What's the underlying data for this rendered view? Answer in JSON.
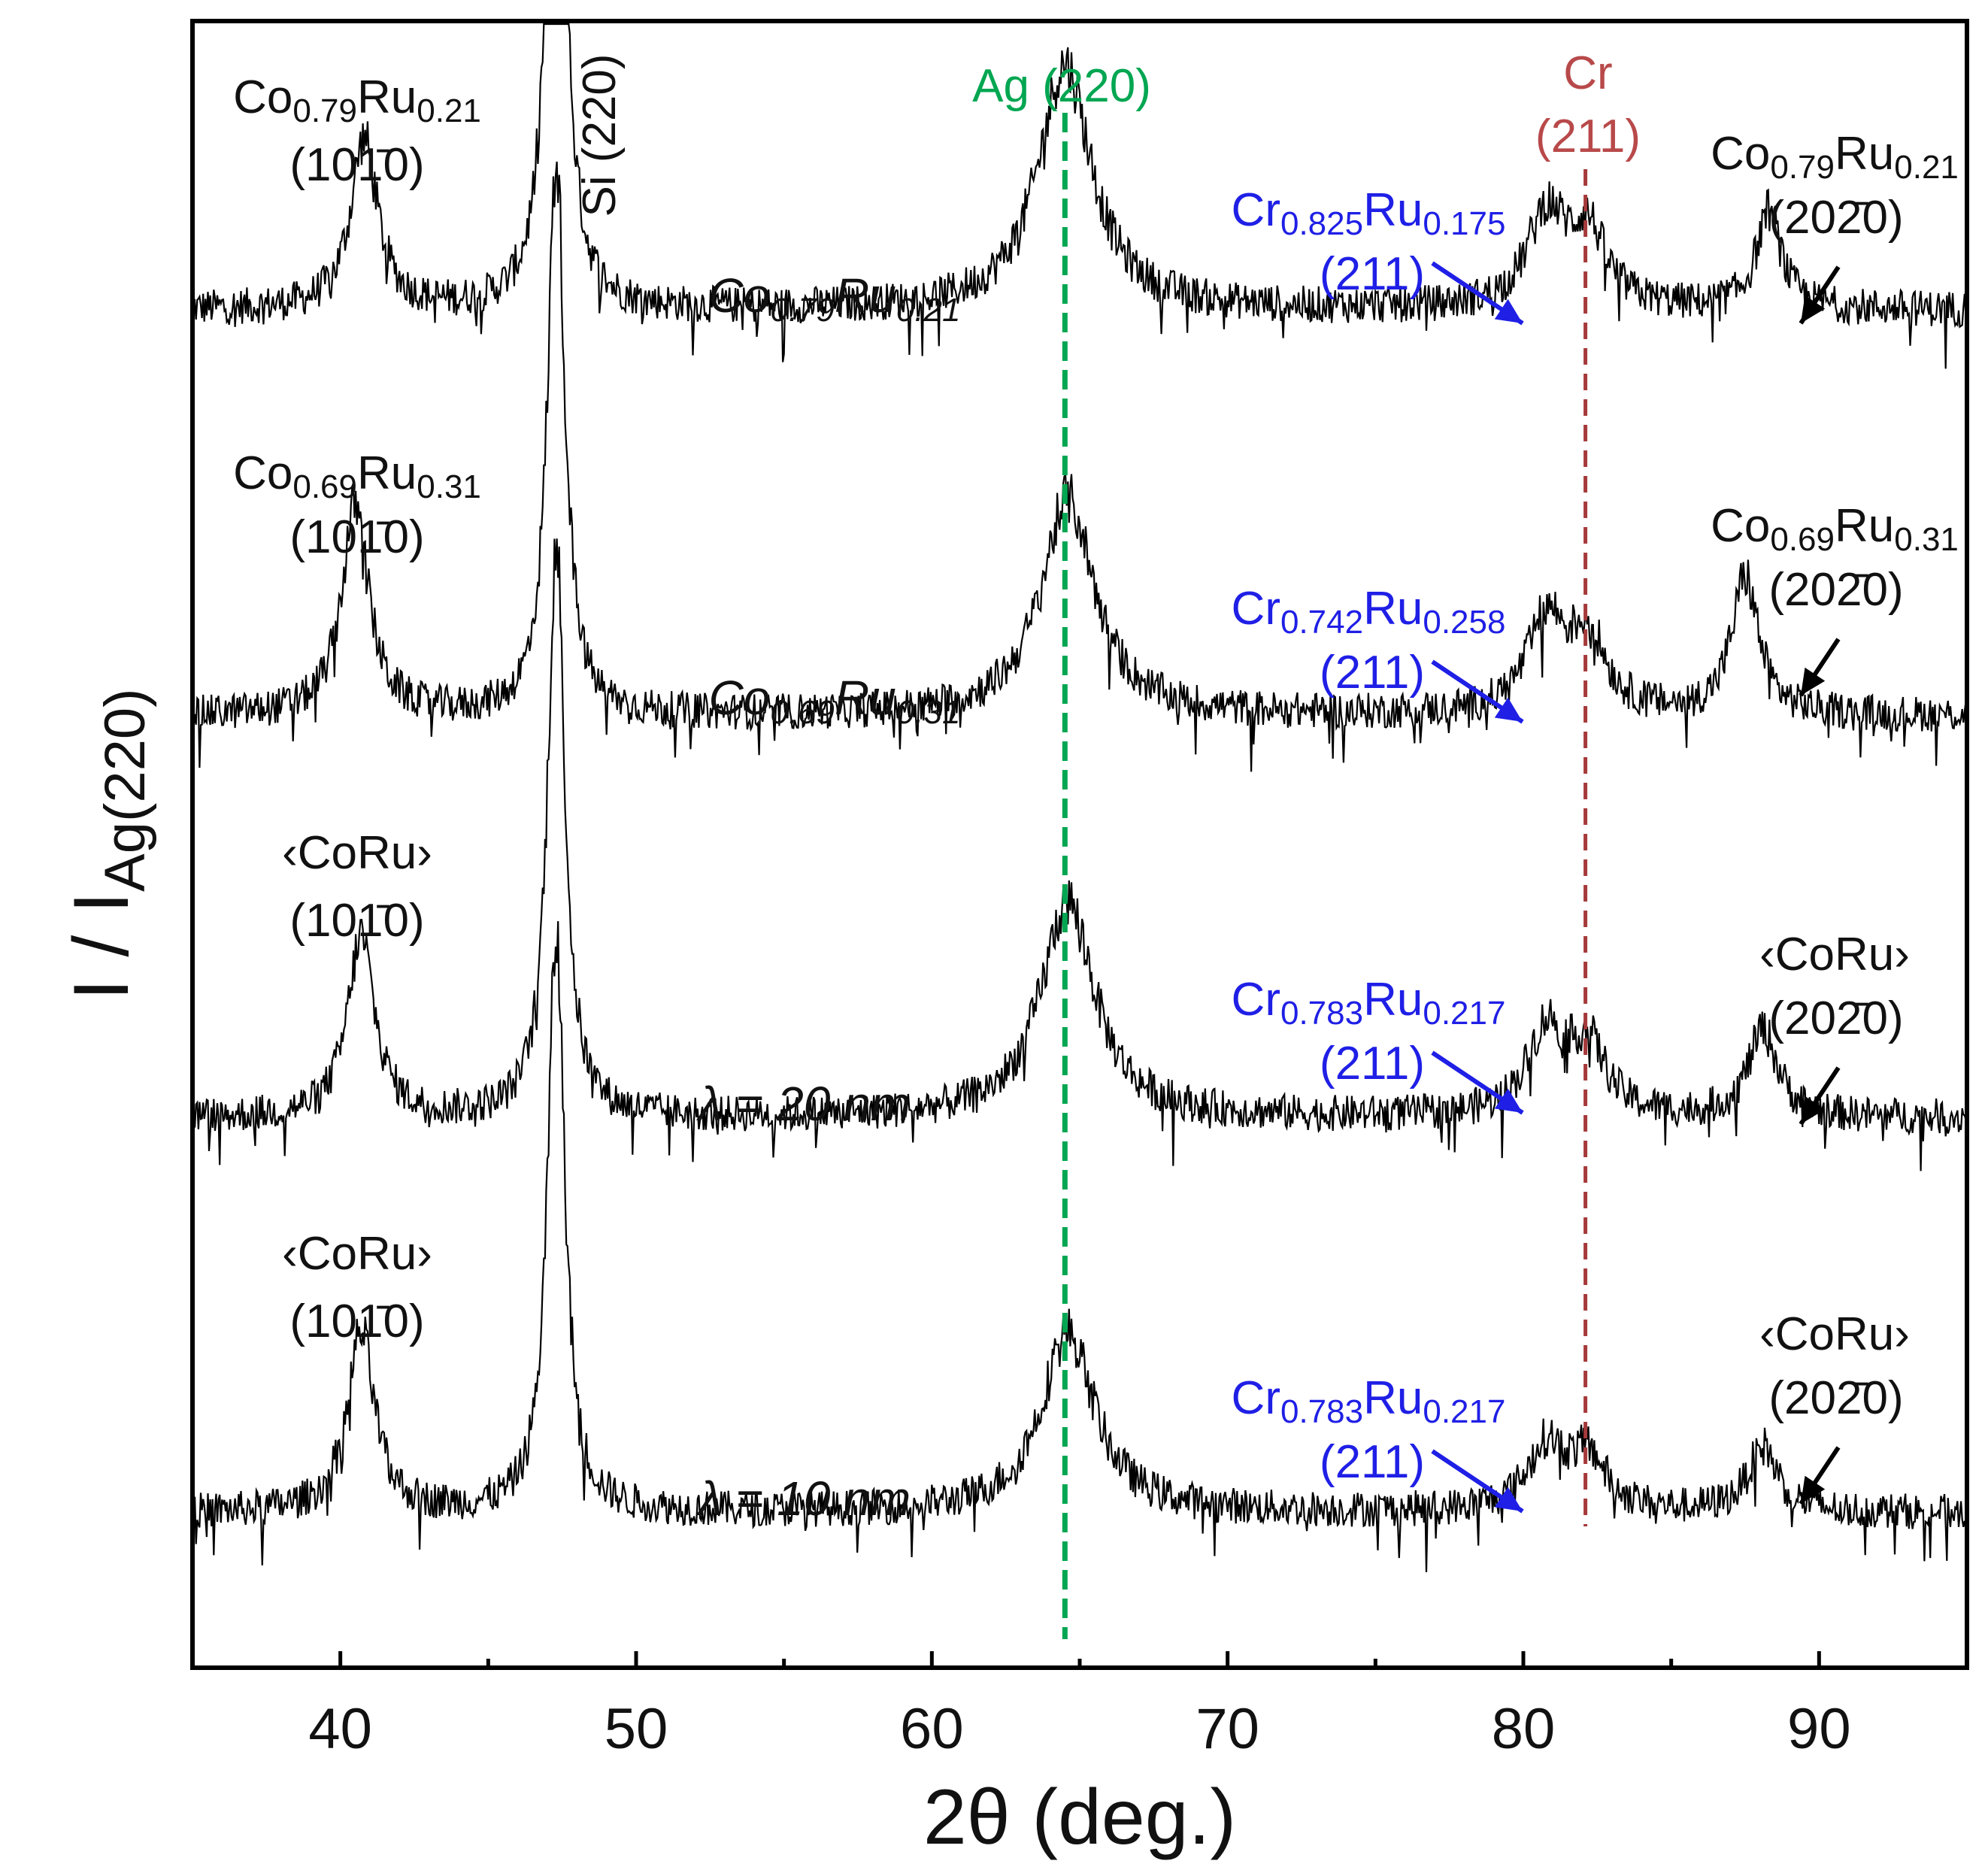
{
  "chart_data": {
    "type": "line",
    "xlabel": "2θ (deg.)",
    "ylabel": "I / I",
    "ylabel_subscript": "Ag(220)",
    "xlim": [
      35,
      95
    ],
    "xticks": [
      40,
      50,
      60,
      70,
      80,
      90
    ],
    "minor_xtick_step": 5,
    "y_axis_ticks": "none",
    "grid": false,
    "legend": "none",
    "reference_lines": [
      {
        "label": "Ag (220)",
        "x": 64.5,
        "style": "dashed",
        "color": "#00a651"
      },
      {
        "label_line1": "Cr",
        "label_line2": "(211)",
        "x": 82.1,
        "style": "dashed",
        "color": "#a53a3b"
      }
    ],
    "vertical_annotation": {
      "label": "Si (220)",
      "x": 47.3
    },
    "series": [
      {
        "sample_label": "Co0.79Ru0.21",
        "sample_base": [
          "Co",
          "Ru"
        ],
        "sample_subs": [
          "0.79",
          "0.21"
        ],
        "baseline": 0.12,
        "peaks": [
          {
            "x": 40.8,
            "height": 0.47,
            "width": 0.55
          },
          {
            "x": 47.3,
            "height": 1.95,
            "width": 0.35
          },
          {
            "x": 64.5,
            "height": 0.68,
            "width": 1.1
          },
          {
            "x": 80.8,
            "height": 0.26,
            "width": 0.8
          },
          {
            "x": 82.2,
            "height": 0.2,
            "width": 0.7
          },
          {
            "x": 88.3,
            "height": 0.27,
            "width": 0.5
          }
        ],
        "left_peak": {
          "base": [
            "Co",
            "Ru"
          ],
          "subs": [
            "0.79",
            "0.21"
          ],
          "hkl": "(101̄0)"
        },
        "cr_peak": {
          "base": [
            "Cr",
            "Ru"
          ],
          "subs": [
            "0.825",
            "0.175"
          ],
          "hkl": "(211)"
        },
        "right_peak": {
          "base": [
            "Co",
            "Ru"
          ],
          "subs": [
            "0.79",
            "0.21"
          ],
          "hkl": "(202̄0)"
        }
      },
      {
        "sample_label": "Co0.69Ru0.31",
        "sample_base": [
          "Co",
          "Ru"
        ],
        "sample_subs": [
          "0.69",
          "0.31"
        ],
        "baseline": 0.1,
        "peaks": [
          {
            "x": 40.5,
            "height": 0.58,
            "width": 0.55
          },
          {
            "x": 47.3,
            "height": 1.55,
            "width": 0.35
          },
          {
            "x": 64.6,
            "height": 0.6,
            "width": 1.1
          },
          {
            "x": 80.8,
            "height": 0.26,
            "width": 0.8
          },
          {
            "x": 82.2,
            "height": 0.2,
            "width": 0.7
          },
          {
            "x": 87.5,
            "height": 0.38,
            "width": 0.55
          }
        ],
        "left_peak": {
          "base": [
            "Co",
            "Ru"
          ],
          "subs": [
            "0.69",
            "0.31"
          ],
          "hkl": "(101̄0)"
        },
        "cr_peak": {
          "base": [
            "Cr",
            "Ru"
          ],
          "subs": [
            "0.742",
            "0.258"
          ],
          "hkl": "(211)"
        },
        "right_peak": {
          "base": [
            "Co",
            "Ru"
          ],
          "subs": [
            "0.69",
            "0.31"
          ],
          "hkl": "(202̄0)"
        }
      },
      {
        "sample_label": "λ = 20 nm",
        "baseline": 0.1,
        "peaks": [
          {
            "x": 40.7,
            "height": 0.5,
            "width": 0.55
          },
          {
            "x": 47.3,
            "height": 1.6,
            "width": 0.35
          },
          {
            "x": 64.6,
            "height": 0.6,
            "width": 1.1
          },
          {
            "x": 80.8,
            "height": 0.24,
            "width": 0.8
          },
          {
            "x": 82.2,
            "height": 0.18,
            "width": 0.7
          },
          {
            "x": 88.1,
            "height": 0.24,
            "width": 0.6
          }
        ],
        "left_peak": {
          "base": [
            "‹CoRu›"
          ],
          "subs": [],
          "hkl": "(101̄0)"
        },
        "cr_peak": {
          "base": [
            "Cr",
            "Ru"
          ],
          "subs": [
            "0.783",
            "0.217"
          ],
          "hkl": "(211)"
        },
        "right_peak": {
          "base": [
            "‹CoRu›"
          ],
          "subs": [],
          "hkl": "(202̄0)"
        }
      },
      {
        "sample_label": "λ = 10 nm",
        "baseline": 0.1,
        "peaks": [
          {
            "x": 40.7,
            "height": 0.5,
            "width": 0.55
          },
          {
            "x": 47.3,
            "height": 1.6,
            "width": 0.35
          },
          {
            "x": 64.6,
            "height": 0.5,
            "width": 1.1
          },
          {
            "x": 80.8,
            "height": 0.18,
            "width": 0.8
          },
          {
            "x": 82.2,
            "height": 0.14,
            "width": 0.7
          },
          {
            "x": 88.1,
            "height": 0.18,
            "width": 0.6
          }
        ],
        "left_peak": {
          "base": [
            "‹CoRu›"
          ],
          "subs": [],
          "hkl": "(101̄0)"
        },
        "cr_peak": {
          "base": [
            "Cr",
            "Ru"
          ],
          "subs": [
            "0.783",
            "0.217"
          ],
          "hkl": "(211)"
        },
        "right_peak": {
          "base": [
            "‹CoRu›"
          ],
          "subs": [],
          "hkl": "(202̄0)"
        }
      }
    ]
  },
  "colors": {
    "trace": "#000000",
    "ag_line": "#00a651",
    "cr_line": "#a53a3b",
    "cr_text": "#b8494a",
    "blue_annotation": "#1f1fe6",
    "text": "#111111"
  }
}
